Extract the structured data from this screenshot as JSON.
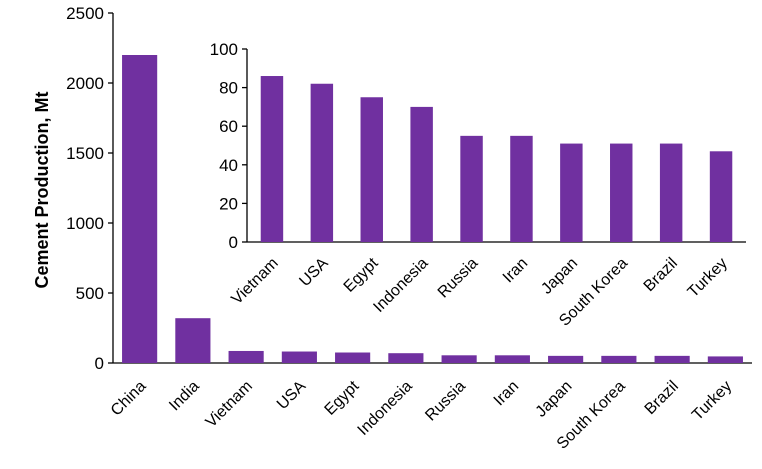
{
  "chart_data": [
    {
      "type": "bar",
      "ylabel": "Cement Production, Mt",
      "categories": [
        "China",
        "India",
        "Vietnam",
        "USA",
        "Egypt",
        "Indonesia",
        "Russia",
        "Iran",
        "Japan",
        "South Korea",
        "Brazil",
        "Turkey"
      ],
      "values": [
        2200,
        320,
        86,
        82,
        75,
        70,
        55,
        55,
        51,
        51,
        51,
        47
      ],
      "ylim": [
        0,
        2500
      ],
      "yticks": [
        "0",
        "500",
        "1000",
        "1500",
        "2000",
        "2500"
      ],
      "grid": false,
      "color": "#7030A0"
    },
    {
      "type": "bar",
      "categories": [
        "Vietnam",
        "USA",
        "Egypt",
        "Indonesia",
        "Russia",
        "Iran",
        "Japan",
        "South Korea",
        "Brazil",
        "Turkey"
      ],
      "values": [
        86,
        82,
        75,
        70,
        55,
        55,
        51,
        51,
        51,
        47
      ],
      "ylim": [
        0,
        100
      ],
      "yticks": [
        "0",
        "20",
        "40",
        "60",
        "80",
        "100"
      ],
      "grid": false,
      "color": "#7030A0"
    }
  ]
}
